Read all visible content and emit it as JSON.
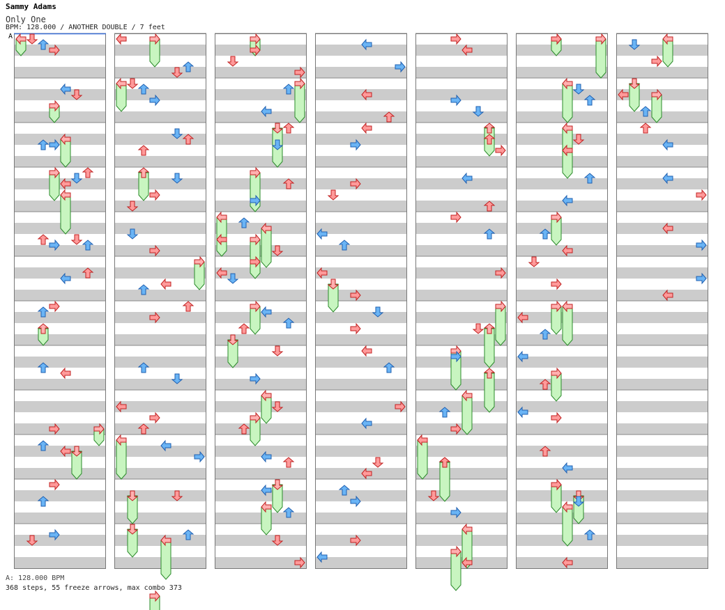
{
  "header": {
    "artist": "Sammy Adams",
    "title": "Only One",
    "meta": "BPM: 128.000 / ANOTHER DOUBLE / 7 feet",
    "bpm_marker": "A"
  },
  "footer": {
    "bpm_legend": "A: 128.000 BPM",
    "stats": "368 steps, 55 freeze arrows, max combo 373"
  },
  "chart_data": {
    "type": "stepchart",
    "columns": 7,
    "measures_per_column": 12,
    "lanes": 8,
    "lane_directions": [
      "left",
      "down",
      "up",
      "right",
      "left",
      "down",
      "up",
      "right"
    ],
    "colors": {
      "red": "#ff9a9a",
      "blue": "#6ab4f5",
      "freeze": "#c8f5c0",
      "stripe": "#cccccc"
    },
    "notes": [
      [
        [
          0,
          1,
          0
        ],
        [
          0,
          2,
          1
        ],
        [
          0,
          3,
          2
        ],
        [
          1,
          4,
          1
        ],
        [
          1,
          5,
          2
        ],
        [
          2,
          2,
          3
        ],
        [
          2,
          3,
          3
        ],
        [
          3,
          4,
          2
        ],
        [
          3,
          5,
          1
        ],
        [
          3,
          6,
          0
        ],
        [
          4,
          2,
          4
        ],
        [
          4,
          3,
          5
        ],
        [
          4,
          5,
          4
        ],
        [
          4,
          6,
          5
        ],
        [
          5,
          4,
          3
        ],
        [
          5,
          6,
          2
        ],
        [
          6,
          2,
          1
        ],
        [
          6,
          3,
          0
        ],
        [
          7,
          2,
          3
        ],
        [
          7,
          4,
          4
        ],
        [
          8,
          3,
          6
        ],
        [
          9,
          2,
          1
        ],
        [
          9,
          4,
          2
        ],
        [
          10,
          2,
          3
        ],
        [
          10,
          3,
          0
        ],
        [
          11,
          1,
          2
        ],
        [
          11,
          3,
          1
        ]
      ],
      [
        [
          0,
          0,
          0
        ],
        [
          0,
          5,
          6
        ],
        [
          0,
          6,
          5
        ],
        [
          1,
          1,
          0
        ],
        [
          1,
          2,
          1
        ],
        [
          1,
          3,
          3
        ],
        [
          2,
          2,
          4
        ],
        [
          2,
          5,
          1
        ],
        [
          2,
          6,
          2
        ],
        [
          3,
          1,
          6
        ],
        [
          3,
          3,
          4
        ],
        [
          3,
          5,
          1
        ],
        [
          4,
          1,
          3
        ],
        [
          4,
          3,
          6
        ],
        [
          5,
          2,
          5
        ],
        [
          5,
          4,
          4
        ],
        [
          6,
          3,
          2
        ],
        [
          6,
          6,
          0
        ],
        [
          7,
          2,
          3
        ],
        [
          7,
          5,
          5
        ],
        [
          8,
          0,
          2
        ],
        [
          8,
          2,
          6
        ],
        [
          8,
          3,
          4
        ],
        [
          9,
          4,
          1
        ],
        [
          9,
          7,
          3
        ],
        [
          10,
          5,
          2
        ],
        [
          11,
          6,
          1
        ]
      ],
      [
        [
          0,
          1,
          4
        ],
        [
          0,
          3,
          2
        ],
        [
          0,
          7,
          6
        ],
        [
          1,
          4,
          5
        ],
        [
          1,
          6,
          1
        ],
        [
          2,
          5,
          3
        ],
        [
          2,
          6,
          0
        ],
        [
          3,
          3,
          5
        ],
        [
          3,
          6,
          2
        ],
        [
          4,
          0,
          4
        ],
        [
          4,
          2,
          1
        ],
        [
          4,
          5,
          6
        ],
        [
          5,
          0,
          2
        ],
        [
          5,
          1,
          3
        ],
        [
          5,
          3,
          0
        ],
        [
          6,
          2,
          4
        ],
        [
          6,
          4,
          1
        ],
        [
          6,
          6,
          3
        ],
        [
          7,
          3,
          5
        ],
        [
          7,
          5,
          0
        ],
        [
          8,
          2,
          6
        ],
        [
          8,
          5,
          2
        ],
        [
          9,
          4,
          3
        ],
        [
          9,
          6,
          4
        ],
        [
          10,
          4,
          1
        ],
        [
          10,
          6,
          5
        ],
        [
          11,
          5,
          2
        ],
        [
          11,
          7,
          6
        ]
      ],
      [
        [
          0,
          4,
          1
        ],
        [
          0,
          7,
          5
        ],
        [
          1,
          4,
          2
        ],
        [
          1,
          6,
          6
        ],
        [
          2,
          3,
          3
        ],
        [
          2,
          4,
          0
        ],
        [
          3,
          1,
          4
        ],
        [
          3,
          3,
          2
        ],
        [
          4,
          0,
          3
        ],
        [
          4,
          2,
          5
        ],
        [
          5,
          0,
          2
        ],
        [
          5,
          3,
          6
        ],
        [
          6,
          3,
          4
        ],
        [
          6,
          5,
          1
        ],
        [
          7,
          4,
          0
        ],
        [
          7,
          6,
          3
        ],
        [
          8,
          4,
          5
        ],
        [
          8,
          7,
          2
        ],
        [
          9,
          4,
          6
        ],
        [
          9,
          5,
          4
        ],
        [
          10,
          2,
          1
        ],
        [
          10,
          3,
          3
        ],
        [
          11,
          0,
          5
        ],
        [
          11,
          3,
          2
        ]
      ],
      [
        [
          0,
          3,
          0
        ],
        [
          0,
          4,
          2
        ],
        [
          1,
          3,
          3
        ],
        [
          1,
          5,
          5
        ],
        [
          2,
          6,
          2
        ],
        [
          2,
          7,
          4
        ],
        [
          3,
          4,
          1
        ],
        [
          3,
          6,
          6
        ],
        [
          4,
          3,
          0
        ],
        [
          4,
          6,
          3
        ],
        [
          5,
          7,
          2
        ],
        [
          6,
          5,
          4
        ],
        [
          7,
          3,
          1
        ],
        [
          8,
          2,
          3
        ],
        [
          8,
          3,
          6
        ],
        [
          9,
          0,
          0
        ],
        [
          9,
          2,
          4
        ],
        [
          10,
          1,
          2
        ],
        [
          10,
          3,
          5
        ],
        [
          11,
          4,
          6
        ]
      ],
      [
        [
          0,
          3,
          0
        ],
        [
          1,
          5,
          1
        ],
        [
          1,
          6,
          3
        ],
        [
          2,
          4,
          4
        ],
        [
          2,
          5,
          2
        ],
        [
          3,
          4,
          5
        ],
        [
          3,
          6,
          1
        ],
        [
          4,
          2,
          3
        ],
        [
          4,
          4,
          6
        ],
        [
          5,
          1,
          0
        ],
        [
          5,
          3,
          4
        ],
        [
          6,
          0,
          2
        ],
        [
          6,
          2,
          5
        ],
        [
          7,
          0,
          1
        ],
        [
          7,
          2,
          6
        ],
        [
          8,
          0,
          3
        ],
        [
          8,
          3,
          4
        ],
        [
          9,
          2,
          2
        ],
        [
          9,
          4,
          5
        ],
        [
          10,
          3,
          0
        ],
        [
          10,
          5,
          3
        ],
        [
          11,
          4,
          6
        ],
        [
          11,
          6,
          1
        ]
      ],
      [
        [
          0,
          1,
          1
        ],
        [
          0,
          3,
          4
        ],
        [
          1,
          0,
          2
        ],
        [
          1,
          2,
          5
        ],
        [
          2,
          2,
          0
        ],
        [
          2,
          4,
          3
        ],
        [
          3,
          4,
          1
        ],
        [
          3,
          7,
          4
        ],
        [
          4,
          4,
          2
        ],
        [
          4,
          7,
          5
        ],
        [
          5,
          4,
          6
        ],
        [
          5,
          7,
          3
        ]
      ]
    ],
    "freezes": [
      [
        [
          0,
          0,
          0,
          1
        ],
        [
          1,
          3,
          2,
          3
        ],
        [
          2,
          4,
          1,
          3
        ],
        [
          3,
          3,
          0,
          2
        ],
        [
          3,
          4,
          2,
          5
        ],
        [
          6,
          2,
          2,
          3
        ],
        [
          8,
          7,
          3,
          4
        ],
        [
          9,
          5,
          1,
          3
        ]
      ],
      [
        [
          0,
          3,
          0,
          2
        ],
        [
          1,
          0,
          0,
          2
        ],
        [
          2,
          2,
          4,
          6
        ],
        [
          4,
          7,
          4,
          6
        ],
        [
          9,
          0,
          0,
          3
        ],
        [
          10,
          1,
          1,
          3
        ],
        [
          11,
          1,
          0,
          2
        ],
        [
          11,
          4,
          1,
          4
        ],
        [
          11,
          3,
          6,
          8
        ]
      ],
      [
        [
          0,
          3,
          0,
          1
        ],
        [
          1,
          7,
          0,
          3
        ],
        [
          2,
          5,
          0,
          3
        ],
        [
          3,
          3,
          0,
          3
        ],
        [
          4,
          0,
          0,
          3
        ],
        [
          4,
          4,
          1,
          4
        ],
        [
          4,
          3,
          2,
          5
        ],
        [
          6,
          3,
          0,
          2
        ],
        [
          6,
          1,
          3,
          5
        ],
        [
          8,
          4,
          0,
          2
        ],
        [
          8,
          3,
          2,
          4
        ],
        [
          10,
          5,
          0,
          2
        ],
        [
          10,
          4,
          2,
          4
        ]
      ],
      [
        [
          5,
          1,
          2,
          4
        ]
      ],
      [
        [
          2,
          6,
          0,
          2
        ],
        [
          6,
          7,
          0,
          3
        ],
        [
          6,
          6,
          2,
          5
        ],
        [
          7,
          6,
          2,
          5
        ],
        [
          7,
          3,
          0,
          3
        ],
        [
          8,
          4,
          0,
          3
        ],
        [
          9,
          0,
          0,
          3
        ],
        [
          9,
          2,
          2,
          5
        ],
        [
          11,
          4,
          0,
          3
        ],
        [
          11,
          3,
          2,
          5
        ]
      ],
      [
        [
          0,
          3,
          0,
          1
        ],
        [
          0,
          7,
          0,
          3
        ],
        [
          1,
          4,
          0,
          3
        ],
        [
          2,
          4,
          0,
          2
        ],
        [
          2,
          4,
          2,
          4
        ],
        [
          4,
          3,
          0,
          2
        ],
        [
          5,
          3,
          4,
          6
        ],
        [
          6,
          4,
          0,
          3
        ],
        [
          7,
          3,
          2,
          4
        ],
        [
          10,
          3,
          0,
          2
        ],
        [
          10,
          5,
          1,
          3
        ],
        [
          10,
          4,
          2,
          5
        ]
      ],
      [
        [
          0,
          4,
          0,
          2
        ],
        [
          1,
          1,
          0,
          2
        ],
        [
          1,
          3,
          1,
          3
        ]
      ]
    ]
  }
}
